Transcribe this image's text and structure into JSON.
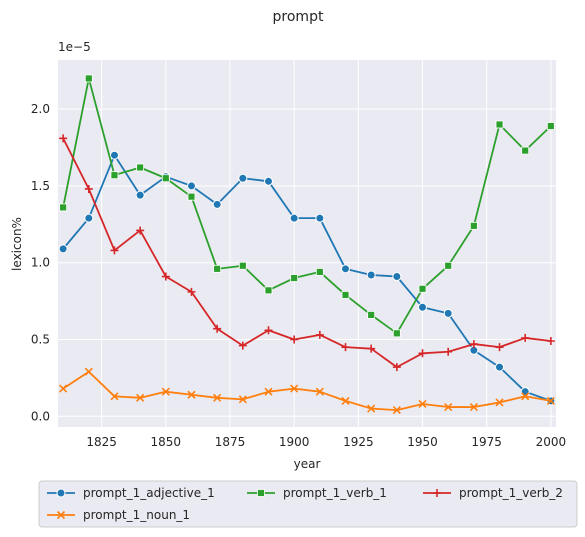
{
  "chart_data": {
    "type": "line",
    "title": "prompt",
    "xlabel": "year",
    "ylabel": "lexicon%",
    "y_scale_label": "1e−5",
    "x": [
      1810,
      1820,
      1830,
      1840,
      1850,
      1860,
      1870,
      1880,
      1890,
      1900,
      1910,
      1920,
      1930,
      1940,
      1950,
      1960,
      1970,
      1980,
      1990,
      2000
    ],
    "xlim": [
      1808,
      2002
    ],
    "ylim": [
      -0.07,
      2.32
    ],
    "x_ticks": [
      1825,
      1850,
      1875,
      1900,
      1925,
      1950,
      1975,
      2000
    ],
    "x_tick_labels": [
      "1825",
      "1850",
      "1875",
      "1900",
      "1925",
      "1950",
      "1975",
      "2000"
    ],
    "y_ticks": [
      0.0,
      0.5,
      1.0,
      1.5,
      2.0
    ],
    "y_tick_labels": [
      "0.0",
      "0.5",
      "1.0",
      "1.5",
      "2.0"
    ],
    "grid": true,
    "legend_placement": "bottom",
    "background": "#eaeaf2",
    "series": [
      {
        "name": "prompt_1_adjective_1",
        "color": "#1f77b4",
        "marker": "circle",
        "values": [
          1.09,
          1.29,
          1.7,
          1.44,
          1.56,
          1.5,
          1.38,
          1.55,
          1.53,
          1.29,
          1.29,
          0.96,
          0.92,
          0.91,
          0.71,
          0.67,
          0.43,
          0.32,
          0.16,
          0.1
        ]
      },
      {
        "name": "prompt_1_noun_1",
        "color": "#ff7f0e",
        "marker": "x",
        "values": [
          0.18,
          0.29,
          0.13,
          0.12,
          0.16,
          0.14,
          0.12,
          0.11,
          0.16,
          0.18,
          0.16,
          0.1,
          0.05,
          0.04,
          0.08,
          0.06,
          0.06,
          0.09,
          0.13,
          0.1
        ]
      },
      {
        "name": "prompt_1_verb_1",
        "color": "#2ca02c",
        "marker": "square",
        "values": [
          1.36,
          2.2,
          1.57,
          1.62,
          1.55,
          1.43,
          0.96,
          0.98,
          0.82,
          0.9,
          0.94,
          0.79,
          0.66,
          0.54,
          0.83,
          0.98,
          1.24,
          1.9,
          1.73,
          1.89
        ]
      },
      {
        "name": "prompt_1_verb_2",
        "color": "#d62728",
        "marker": "plus",
        "values": [
          1.81,
          1.48,
          1.08,
          1.21,
          0.91,
          0.81,
          0.57,
          0.46,
          0.56,
          0.5,
          0.53,
          0.45,
          0.44,
          0.32,
          0.41,
          0.42,
          0.47,
          0.45,
          0.51,
          0.49
        ]
      }
    ]
  }
}
